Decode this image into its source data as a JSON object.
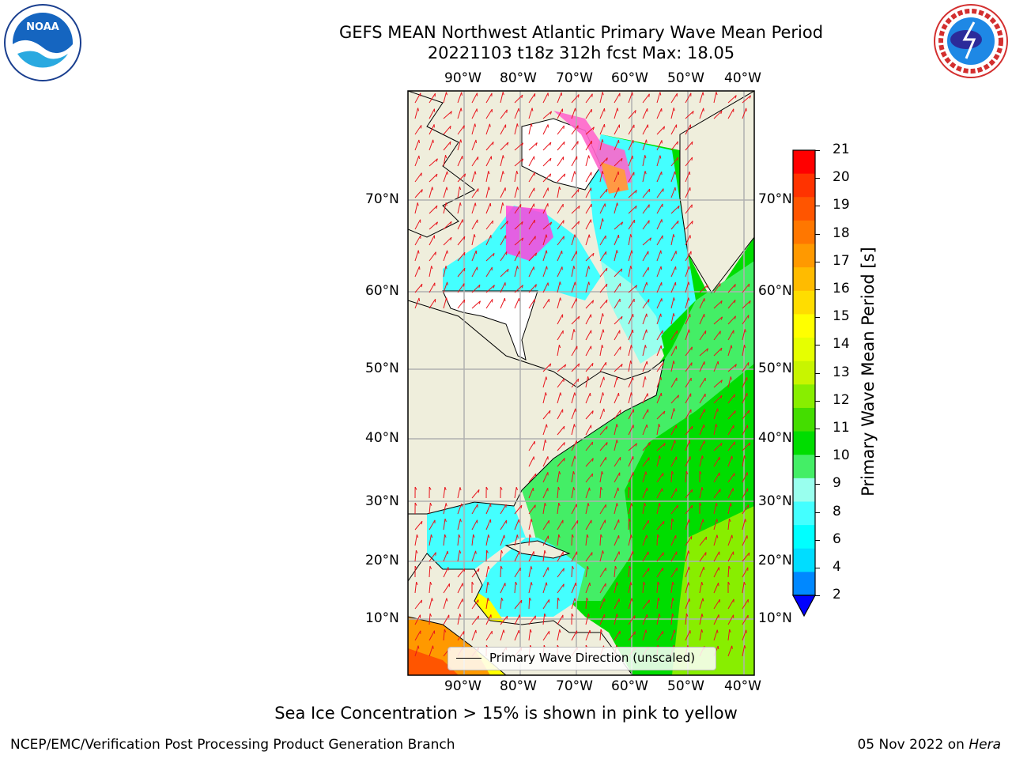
{
  "header": {
    "title_line1": "GEFS MEAN Northwest Atlantic Primary Wave Mean Period",
    "title_line2": "20221103 t18z 312h fcst   Max: 18.05"
  },
  "logos": {
    "left": {
      "text": "NOAA",
      "icon": "noaa-logo"
    },
    "right": {
      "icon": "national-weather-service-logo"
    }
  },
  "map": {
    "lon_labels": [
      "90°W",
      "80°W",
      "70°W",
      "60°W",
      "50°W",
      "40°W"
    ],
    "lat_labels": [
      "70°N",
      "60°N",
      "50°N",
      "40°N",
      "30°N",
      "20°N",
      "10°N"
    ],
    "legend_label": "Primary Wave Direction (unscaled)",
    "colors": {
      "land": "#efeedc",
      "ice_white": "#ffffff",
      "arrow": "#e8141c",
      "grid": "#b0b0b0"
    }
  },
  "colorbar": {
    "label": "Primary Wave Mean Period [s]",
    "ticks": [
      "21",
      "20",
      "19",
      "18",
      "17",
      "16",
      "15",
      "14",
      "13",
      "12",
      "11",
      "10",
      "9",
      "8",
      "6",
      "4",
      "2"
    ],
    "colors": [
      "#ff0000",
      "#ff3300",
      "#ff5500",
      "#ff7700",
      "#ff9900",
      "#ffbb00",
      "#ffdd00",
      "#ffff00",
      "#e6ff00",
      "#c8f500",
      "#88ee00",
      "#44dd00",
      "#00dd00",
      "#44ee66",
      "#99ffee",
      "#44ffff",
      "#00ffff",
      "#00ddff",
      "#0088ff",
      "#0000ff"
    ]
  },
  "footer": {
    "caption": "Sea Ice Concentration > 15% is shown in pink to yellow",
    "left": "NCEP/EMC/Verification Post Processing Product Generation Branch",
    "date": "05 Nov 2022 on",
    "machine": "Hera"
  }
}
